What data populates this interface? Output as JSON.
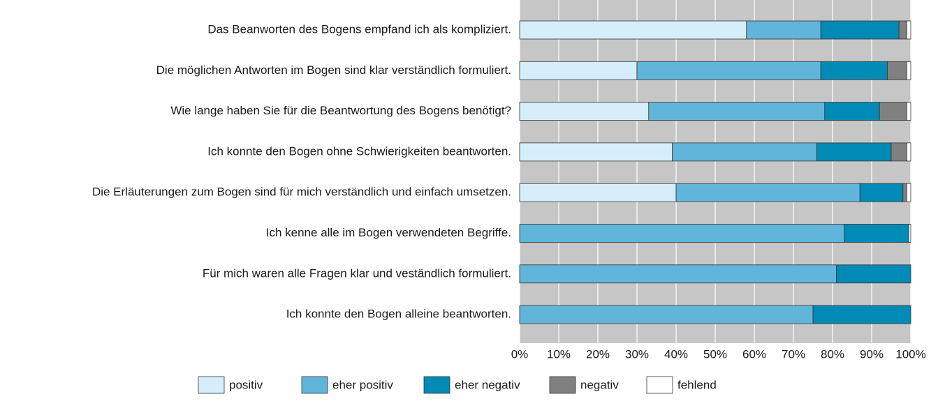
{
  "chart_data": {
    "type": "stacked-bar-horizontal",
    "categories": [
      "Das Beanworten des Bogens empfand ich als kompliziert.",
      "Die möglichen Antworten im Bogen sind klar verständlich formuliert.",
      "Wie lange haben Sie für die Beantwortung des Bogens benötigt?",
      "Ich konnte den Bogen ohne Schwierigkeiten beantworten.",
      "Die Erläuterungen zum Bogen sind für mich verständlich und einfach umsetzen.",
      "Ich kenne alle im Bogen verwendeten Begriffe.",
      "Für mich waren alle Fragen klar und veständlich formuliert.",
      "Ich konnte den Bogen alleine beantworten."
    ],
    "series": [
      {
        "name": "positiv",
        "color": "#d6eef9",
        "values": [
          58,
          30,
          33,
          39,
          40,
          0,
          0,
          0
        ]
      },
      {
        "name": "eher positiv",
        "color": "#62b5da",
        "values": [
          19,
          47,
          45,
          37,
          47,
          83,
          81,
          75
        ]
      },
      {
        "name": "eher negativ",
        "color": "#008ab6",
        "values": [
          20,
          17,
          14,
          19,
          11,
          16.5,
          19,
          25
        ]
      },
      {
        "name": "negativ",
        "color": "#808080",
        "values": [
          2,
          5,
          7,
          4,
          1,
          0,
          0,
          0
        ]
      },
      {
        "name": "fehlend",
        "color": "#ffffff",
        "values": [
          1,
          1,
          1,
          1,
          1,
          0.5,
          0,
          0
        ]
      }
    ],
    "xlim": [
      0,
      100
    ],
    "xticks": [
      {
        "value": 0,
        "label": "0%"
      },
      {
        "value": 10,
        "label": "10%"
      },
      {
        "value": 20,
        "label": "20%"
      },
      {
        "value": 30,
        "label": "30%"
      },
      {
        "value": 40,
        "label": "40%"
      },
      {
        "value": 50,
        "label": "50%"
      },
      {
        "value": 60,
        "label": "60%"
      },
      {
        "value": 70,
        "label": "70%"
      },
      {
        "value": 80,
        "label": "80%"
      },
      {
        "value": 90,
        "label": "90%"
      },
      {
        "value": 100,
        "label": "100%"
      }
    ],
    "grid": true,
    "legend": "bottom"
  }
}
